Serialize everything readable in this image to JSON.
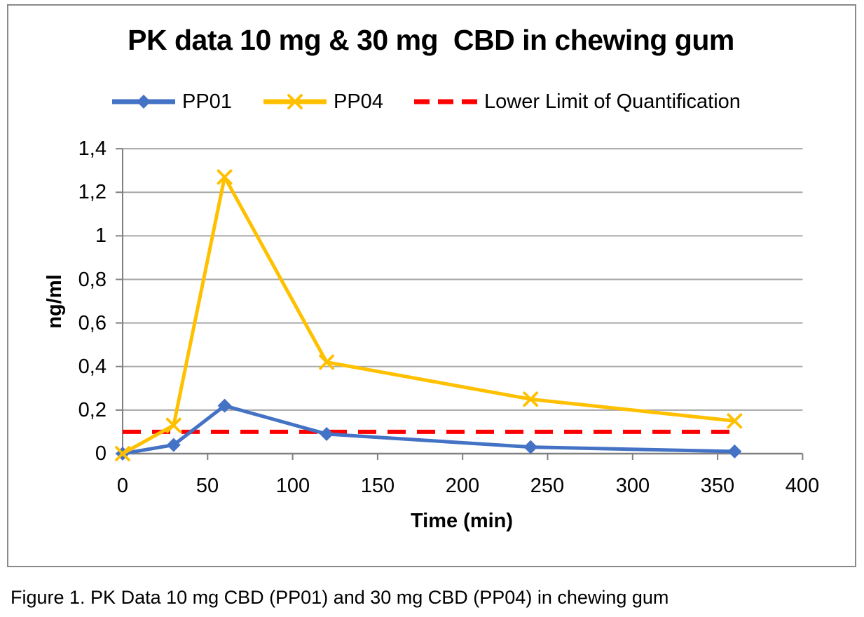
{
  "caption": "Figure 1. PK Data 10 mg CBD (PP01) and 30 mg CBD (PP04) in chewing gum",
  "chart_data": {
    "type": "line",
    "title": "PK data 10 mg & 30 mg  CBD in chewing gum",
    "xlabel": "Time (min)",
    "ylabel": "ng/ml",
    "xlim": [
      0,
      400
    ],
    "ylim": [
      0,
      1.4
    ],
    "x_ticks": [
      0,
      50,
      100,
      150,
      200,
      250,
      300,
      350,
      400
    ],
    "x_tick_labels": [
      "0",
      "50",
      "100",
      "150",
      "200",
      "250",
      "300",
      "350",
      "400"
    ],
    "y_ticks": [
      0,
      0.2,
      0.4,
      0.6,
      0.8,
      1,
      1.2,
      1.4
    ],
    "y_tick_labels": [
      "0",
      "0,2",
      "0,4",
      "0,6",
      "0,8",
      "1",
      "1,2",
      "1,4"
    ],
    "grid": "horizontal",
    "grid_color": "#A6A6A6",
    "axis_color": "#808080",
    "legend_position": "top",
    "series": [
      {
        "name": "PP01",
        "color": "#4472C4",
        "marker": "diamond",
        "x": [
          0,
          30,
          60,
          120,
          240,
          360
        ],
        "y": [
          0,
          0.04,
          0.22,
          0.09,
          0.03,
          0.01
        ]
      },
      {
        "name": "PP04",
        "color": "#FFC000",
        "marker": "x",
        "x": [
          0,
          30,
          60,
          120,
          240,
          360
        ],
        "y": [
          0,
          0.13,
          1.27,
          0.42,
          0.25,
          0.15
        ]
      }
    ],
    "reference_line": {
      "name": "Lower Limit of Quantification",
      "color": "#FF0000",
      "style": "dashed",
      "value": 0.1,
      "x_start": 0,
      "x_end": 357
    }
  }
}
